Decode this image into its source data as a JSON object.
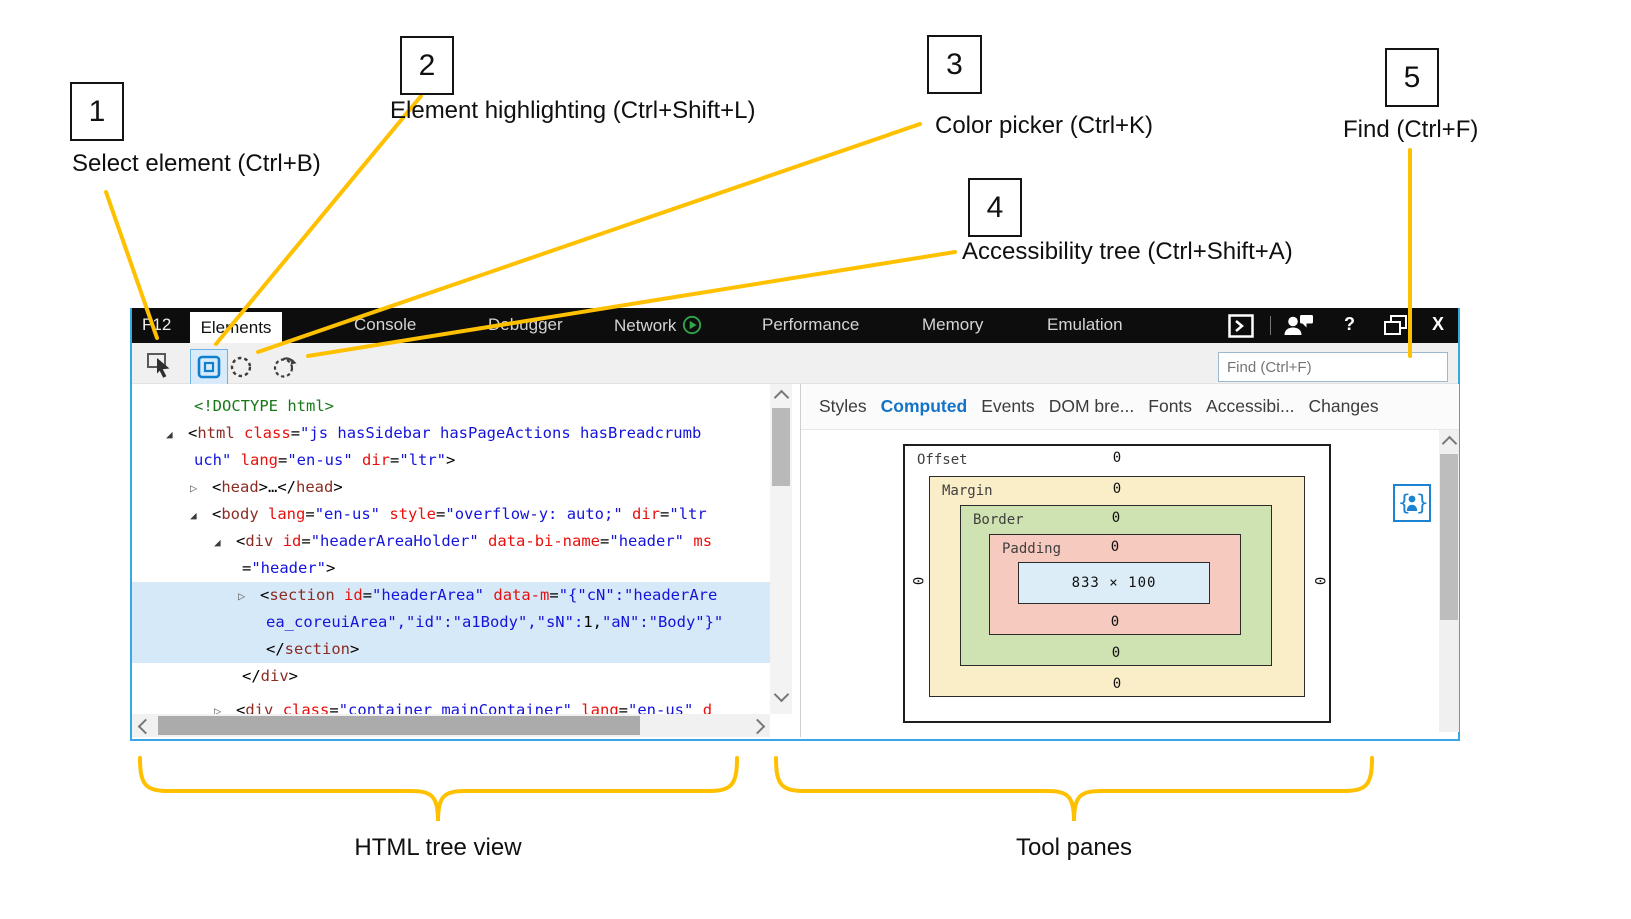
{
  "colors": {
    "annotation_accent": "#FFC000",
    "window_border_blue": "#3BA6E4",
    "tabbar_bg": "#0D0D0D",
    "code": {
      "tag": "#8B2C24",
      "attribute": "#E8100C",
      "value": "#1414DC",
      "doctype": "#187818",
      "selection_bg": "#D6E9F8"
    },
    "box_model": {
      "margin": "#FAEEC8",
      "border": "#CFE2B2",
      "padding": "#F7CABF",
      "content": "#DCEDF8"
    },
    "computed_tab_active": "#1273C8",
    "network_play_green": "#2FA848",
    "accessibility_icon_blue": "#1B83D2"
  },
  "annotations": {
    "callouts": [
      {
        "num": "1",
        "label": "Select element (Ctrl+B)"
      },
      {
        "num": "2",
        "label": "Element highlighting (Ctrl+Shift+L)"
      },
      {
        "num": "3",
        "label": "Color picker (Ctrl+K)"
      },
      {
        "num": "4",
        "label": "Accessibility tree (Ctrl+Shift+A)"
      },
      {
        "num": "5",
        "label": "Find (Ctrl+F)"
      }
    ],
    "brace_labels": [
      "HTML tree view",
      "Tool panes"
    ]
  },
  "devtools": {
    "window_label": "F12",
    "tabs": [
      {
        "label": "Elements",
        "active": true
      },
      {
        "label": "Console"
      },
      {
        "label": "Debugger"
      },
      {
        "label": "Network",
        "icon": "play"
      },
      {
        "label": "Performance"
      },
      {
        "label": "Memory"
      },
      {
        "label": "Emulation"
      }
    ],
    "titlebar_icons": [
      {
        "name": "console-drawer-icon"
      },
      {
        "name": "feedback-icon"
      },
      {
        "name": "help-icon",
        "glyph": "?"
      },
      {
        "name": "restore-window-icon"
      },
      {
        "name": "close-icon",
        "glyph": "X"
      }
    ],
    "toolbar_icons": [
      "select-element",
      "element-highlighting",
      "color-picker",
      "accessibility-tree"
    ],
    "find": {
      "placeholder": "Find (Ctrl+F)",
      "value": ""
    },
    "glyphs": {
      "open": "◢",
      "closed": "▷"
    },
    "code_lines": [
      {
        "ind": 0,
        "cont": true,
        "tok": [
          [
            "doctype",
            "<!DOCTYPE html>"
          ]
        ]
      },
      {
        "ind": 0,
        "exp": "open",
        "tok": [
          [
            "plain",
            "<"
          ],
          [
            "tag",
            "html"
          ],
          [
            "plain",
            " "
          ],
          [
            "attr",
            "class"
          ],
          [
            "plain",
            "="
          ],
          [
            "value",
            "\"js hasSidebar hasPageActions hasBreadcrumb"
          ]
        ]
      },
      {
        "ind": 0,
        "cont": true,
        "tok": [
          [
            "value",
            "uch\""
          ],
          [
            "plain",
            " "
          ],
          [
            "attr",
            "lang"
          ],
          [
            "plain",
            "="
          ],
          [
            "value",
            "\"en-us\""
          ],
          [
            "plain",
            " "
          ],
          [
            "attr",
            "dir"
          ],
          [
            "plain",
            "="
          ],
          [
            "value",
            "\"ltr\""
          ],
          [
            "plain",
            ">"
          ]
        ]
      },
      {
        "ind": 1,
        "exp": "closed",
        "tok": [
          [
            "plain",
            "<"
          ],
          [
            "tag",
            "head"
          ],
          [
            "plain",
            ">…</"
          ],
          [
            "tag",
            "head"
          ],
          [
            "plain",
            ">"
          ]
        ]
      },
      {
        "ind": 1,
        "exp": "open",
        "tok": [
          [
            "plain",
            "<"
          ],
          [
            "tag",
            "body"
          ],
          [
            "plain",
            " "
          ],
          [
            "attr",
            "lang"
          ],
          [
            "plain",
            "="
          ],
          [
            "value",
            "\"en-us\""
          ],
          [
            "plain",
            " "
          ],
          [
            "attr",
            "style"
          ],
          [
            "plain",
            "="
          ],
          [
            "value",
            "\"overflow-y: auto;\""
          ],
          [
            "plain",
            " "
          ],
          [
            "attr",
            "dir"
          ],
          [
            "plain",
            "="
          ],
          [
            "value",
            "\"ltr"
          ]
        ]
      },
      {
        "ind": 2,
        "exp": "open",
        "tok": [
          [
            "plain",
            "<"
          ],
          [
            "tag",
            "div"
          ],
          [
            "plain",
            " "
          ],
          [
            "attr",
            "id"
          ],
          [
            "plain",
            "="
          ],
          [
            "value",
            "\"headerAreaHolder\""
          ],
          [
            "plain",
            " "
          ],
          [
            "attr",
            "data-bi-name"
          ],
          [
            "plain",
            "="
          ],
          [
            "value",
            "\"header\""
          ],
          [
            "plain",
            " "
          ],
          [
            "attr",
            "ms"
          ]
        ]
      },
      {
        "ind": 2,
        "cont": true,
        "tok": [
          [
            "plain",
            "="
          ],
          [
            "value",
            "\"header\""
          ],
          [
            "plain",
            ">"
          ]
        ]
      },
      {
        "ind": 3,
        "exp": "closed",
        "sel": true,
        "tok": [
          [
            "plain",
            "<"
          ],
          [
            "tag",
            "section"
          ],
          [
            "plain",
            " "
          ],
          [
            "attr",
            "id"
          ],
          [
            "plain",
            "="
          ],
          [
            "value",
            "\"headerArea\""
          ],
          [
            "plain",
            " "
          ],
          [
            "attr",
            "data-m"
          ],
          [
            "plain",
            "="
          ],
          [
            "value",
            "\"{\"cN\":\"headerAre"
          ]
        ]
      },
      {
        "ind": 3,
        "cont": true,
        "sel": true,
        "tok": [
          [
            "value",
            "ea_coreuiArea\",\"id\":\"a1Body\",\"sN\":"
          ],
          [
            "plain",
            "1,"
          ],
          [
            "value",
            "\"aN\":\"Body\"}\""
          ]
        ]
      },
      {
        "ind": 3,
        "cont": true,
        "sel": true,
        "tok": [
          [
            "plain",
            "</"
          ],
          [
            "tag",
            "section"
          ],
          [
            "plain",
            ">"
          ]
        ]
      },
      {
        "ind": 2,
        "cont": true,
        "tok": [
          [
            "plain",
            "</"
          ],
          [
            "tag",
            "div"
          ],
          [
            "plain",
            ">"
          ]
        ]
      },
      {
        "ind": 2,
        "exp": "closed",
        "clip": true,
        "tok": [
          [
            "plain",
            "<"
          ],
          [
            "tag",
            "div"
          ],
          [
            "plain",
            " "
          ],
          [
            "attr",
            "class"
          ],
          [
            "plain",
            "="
          ],
          [
            "value",
            "\"container mainContainer\""
          ],
          [
            "plain",
            " "
          ],
          [
            "attr",
            "lang"
          ],
          [
            "plain",
            "="
          ],
          [
            "value",
            "\"en-us\""
          ],
          [
            "plain",
            " "
          ],
          [
            "attr",
            "d"
          ]
        ]
      }
    ],
    "right_tabs": [
      {
        "label": "Styles"
      },
      {
        "label": "Computed",
        "active": true
      },
      {
        "label": "Events"
      },
      {
        "label": "DOM bre..."
      },
      {
        "label": "Fonts"
      },
      {
        "label": "Accessibi..."
      },
      {
        "label": "Changes"
      }
    ],
    "box_model": {
      "layers": [
        {
          "name": "Offset",
          "value": "0"
        },
        {
          "name": "Margin",
          "value": "0"
        },
        {
          "name": "Border",
          "value": "0"
        },
        {
          "name": "Padding",
          "value": "0"
        }
      ],
      "content": "833 × 100",
      "side_value": "0",
      "bottom_values": [
        "0",
        "0",
        "0"
      ]
    }
  }
}
